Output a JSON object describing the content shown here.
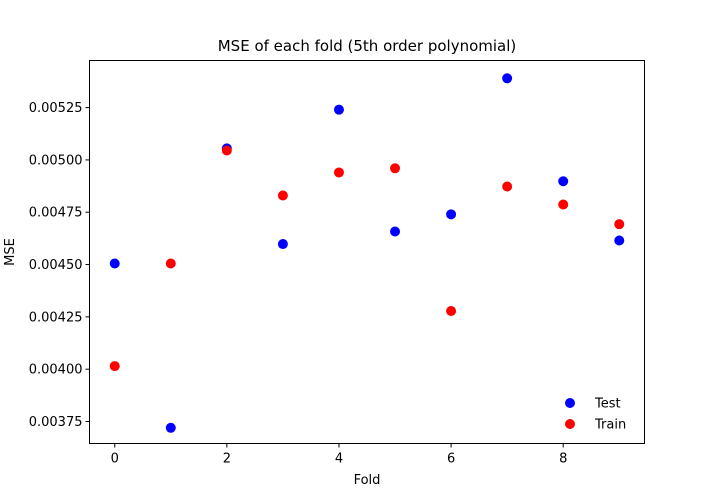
{
  "chart_data": {
    "type": "scatter",
    "title": "MSE of each fold (5th order polynomial)",
    "xlabel": "Fold",
    "ylabel": "MSE",
    "xlim": [
      -0.45,
      9.45
    ],
    "ylim": [
      0.003645,
      0.005475
    ],
    "xticks": [
      0,
      2,
      4,
      6,
      8
    ],
    "xtick_labels": [
      "0",
      "2",
      "4",
      "6",
      "8"
    ],
    "yticks": [
      0.00375,
      0.004,
      0.00425,
      0.0045,
      0.00475,
      0.005,
      0.00525
    ],
    "ytick_labels": [
      "0.00375",
      "0.00400",
      "0.00425",
      "0.00450",
      "0.00475",
      "0.00500",
      "0.00525"
    ],
    "grid": false,
    "legend_position": "lower-right",
    "series": [
      {
        "name": "Test",
        "color": "#0000ff",
        "x": [
          0,
          1,
          2,
          3,
          4,
          5,
          6,
          7,
          8,
          9
        ],
        "y": [
          0.004505,
          0.00372,
          0.005055,
          0.004598,
          0.00524,
          0.004658,
          0.00474,
          0.00539,
          0.004898,
          0.004615
        ]
      },
      {
        "name": "Train",
        "color": "#ff0000",
        "x": [
          0,
          1,
          2,
          3,
          4,
          5,
          6,
          7,
          8,
          9
        ],
        "y": [
          0.004015,
          0.004505,
          0.005045,
          0.00483,
          0.00494,
          0.00496,
          0.004278,
          0.004873,
          0.004787,
          0.004693
        ]
      }
    ]
  }
}
